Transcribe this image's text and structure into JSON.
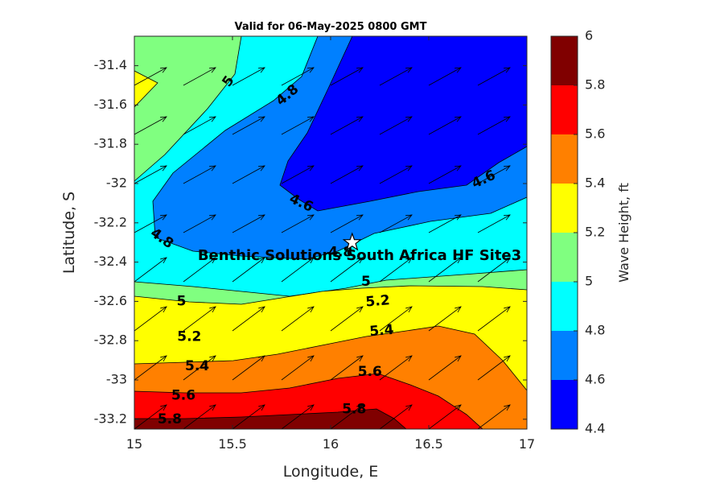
{
  "chart_data": {
    "type": "contour",
    "title": "Valid for 06-May-2025 0800 GMT",
    "xlabel": "Longitude, E",
    "ylabel": "Latitude, S",
    "xlim": [
      15,
      17
    ],
    "ylim": [
      -33.25,
      -31.25
    ],
    "xticks": [
      "15",
      "15.5",
      "16",
      "16.5",
      "17"
    ],
    "yticks": [
      "-31.4",
      "-31.6",
      "-31.8",
      "-32",
      "-32.2",
      "-32.4",
      "-32.6",
      "-32.8",
      "-33",
      "-33.2"
    ],
    "colorbar": {
      "label": "Wave Height, ft",
      "ticks": [
        "4.4",
        "4.6",
        "4.8",
        "5",
        "5.2",
        "5.4",
        "5.6",
        "5.8",
        "6"
      ],
      "levels": [
        {
          "from": 4.4,
          "to": 4.6,
          "color": "#0000ff"
        },
        {
          "from": 4.6,
          "to": 4.8,
          "color": "#0080ff"
        },
        {
          "from": 4.8,
          "to": 5.0,
          "color": "#00ffff"
        },
        {
          "from": 5.0,
          "to": 5.2,
          "color": "#80ff80"
        },
        {
          "from": 5.2,
          "to": 5.4,
          "color": "#ffff00"
        },
        {
          "from": 5.4,
          "to": 5.6,
          "color": "#ff8000"
        },
        {
          "from": 5.6,
          "to": 5.8,
          "color": "#ff0000"
        },
        {
          "from": 5.8,
          "to": 6.0,
          "color": "#800000"
        }
      ]
    },
    "contour_labels": [
      {
        "text": "5",
        "lon": 15.48,
        "lat": -31.48,
        "rot": -55
      },
      {
        "text": "4.8",
        "lon": 15.78,
        "lat": -31.55,
        "rot": -40
      },
      {
        "text": "4.6",
        "lon": 16.78,
        "lat": -31.98,
        "rot": -25
      },
      {
        "text": "4.6",
        "lon": 15.85,
        "lat": -32.1,
        "rot": 25
      },
      {
        "text": "4.8",
        "lon": 15.14,
        "lat": -32.28,
        "rot": 35
      },
      {
        "text": "4.8",
        "lon": 16.05,
        "lat": -32.35,
        "rot": 0
      },
      {
        "text": "5",
        "lon": 16.18,
        "lat": -32.5,
        "rot": 0
      },
      {
        "text": "5",
        "lon": 15.24,
        "lat": -32.6,
        "rot": 0
      },
      {
        "text": "5.2",
        "lon": 16.24,
        "lat": -32.6,
        "rot": -5
      },
      {
        "text": "5.2",
        "lon": 15.28,
        "lat": -32.78,
        "rot": 0
      },
      {
        "text": "5.4",
        "lon": 16.26,
        "lat": -32.75,
        "rot": -5
      },
      {
        "text": "5.4",
        "lon": 15.32,
        "lat": -32.93,
        "rot": 0
      },
      {
        "text": "5.6",
        "lon": 16.2,
        "lat": -32.96,
        "rot": 0
      },
      {
        "text": "5.6",
        "lon": 15.25,
        "lat": -33.08,
        "rot": 0
      },
      {
        "text": "5.8",
        "lon": 16.12,
        "lat": -33.15,
        "rot": 0
      },
      {
        "text": "5.8",
        "lon": 15.18,
        "lat": -33.2,
        "rot": 0
      }
    ],
    "site": {
      "label": "Benthic Solutions South Africa HF Site3",
      "lon": 16.11,
      "lat": -32.3
    },
    "vectors": {
      "direction": "to the northeast",
      "spacing_deg": 0.25
    }
  }
}
